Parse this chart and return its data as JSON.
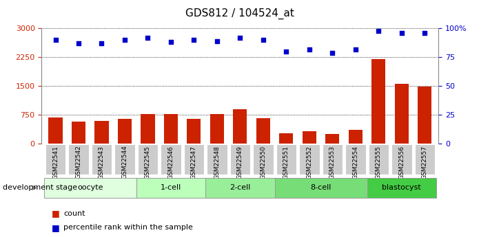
{
  "title": "GDS812 / 104524_at",
  "samples": [
    "GSM22541",
    "GSM22542",
    "GSM22543",
    "GSM22544",
    "GSM22545",
    "GSM22546",
    "GSM22547",
    "GSM22548",
    "GSM22549",
    "GSM22550",
    "GSM22551",
    "GSM22552",
    "GSM22553",
    "GSM22554",
    "GSM22555",
    "GSM22556",
    "GSM22557"
  ],
  "counts": [
    680,
    570,
    580,
    640,
    760,
    760,
    640,
    760,
    900,
    660,
    270,
    320,
    250,
    350,
    2200,
    1560,
    1480
  ],
  "percentiles": [
    90,
    87,
    87,
    90,
    92,
    88,
    90,
    89,
    92,
    90,
    80,
    82,
    79,
    82,
    98,
    96,
    96
  ],
  "bar_color": "#cc2200",
  "dot_color": "#0000cc",
  "ylim_left": [
    0,
    3000
  ],
  "ylim_right": [
    0,
    100
  ],
  "yticks_left": [
    0,
    750,
    1500,
    2250,
    3000
  ],
  "yticks_right": [
    0,
    25,
    50,
    75,
    100
  ],
  "yticklabels_right": [
    "0",
    "25",
    "50",
    "75",
    "100%"
  ],
  "groups": [
    {
      "label": "oocyte",
      "start": 0,
      "end": 4,
      "color": "#dfffdf"
    },
    {
      "label": "1-cell",
      "start": 4,
      "end": 7,
      "color": "#bbffbb"
    },
    {
      "label": "2-cell",
      "start": 7,
      "end": 10,
      "color": "#99ee99"
    },
    {
      "label": "8-cell",
      "start": 10,
      "end": 14,
      "color": "#77dd77"
    },
    {
      "label": "blastocyst",
      "start": 14,
      "end": 17,
      "color": "#44cc44"
    }
  ],
  "xlabel_left": "development stage",
  "legend_count_label": "count",
  "legend_pct_label": "percentile rank within the sample",
  "tick_label_color_left": "#cc2200",
  "tick_label_color_right": "#0000cc",
  "cell_bg_color": "#cccccc",
  "cell_border_color": "#ffffff"
}
